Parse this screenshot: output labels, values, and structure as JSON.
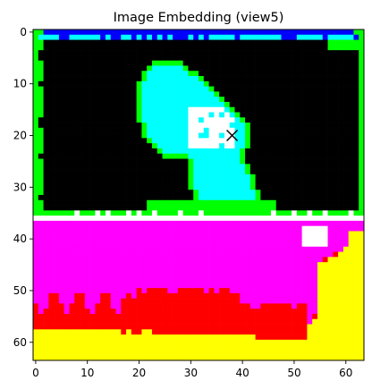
{
  "chart_data": {
    "type": "heatmap",
    "title": "Image Embedding (view5)",
    "image_size": [
      64,
      64
    ],
    "xlim": [
      -0.5,
      63.5
    ],
    "ylim": [
      63.5,
      -0.5
    ],
    "xticks": [
      0,
      10,
      20,
      30,
      40,
      50,
      60
    ],
    "yticks": [
      0,
      10,
      20,
      30,
      40,
      50,
      60
    ],
    "xtick_labels": [
      "0",
      "10",
      "20",
      "30",
      "40",
      "50",
      "60"
    ],
    "ytick_labels": [
      "0",
      "10",
      "20",
      "30",
      "40",
      "50",
      "60"
    ],
    "grid": false,
    "marker": {
      "symbol": "x",
      "x": 38,
      "y": 20,
      "color": "#000000"
    },
    "colors": {
      "black": "#000000",
      "green": "#00ff00",
      "cyan": "#00ffff",
      "blue": "#0000ff",
      "white": "#ffffff",
      "magenta": "#ff00ff",
      "red": "#ff0000",
      "yellow": "#ffff00"
    },
    "regions": [
      {
        "label": "background",
        "color": "white"
      },
      {
        "label": "frame-border",
        "color": "green"
      },
      {
        "label": "frame-interior",
        "color": "black"
      },
      {
        "label": "top-strip",
        "color": "blue"
      },
      {
        "label": "object",
        "color": "cyan"
      },
      {
        "label": "object-highlight",
        "color": "white"
      },
      {
        "label": "floor-upper",
        "color": "magenta"
      },
      {
        "label": "floor-middle",
        "color": "red"
      },
      {
        "label": "floor-lower",
        "color": "yellow"
      }
    ]
  }
}
